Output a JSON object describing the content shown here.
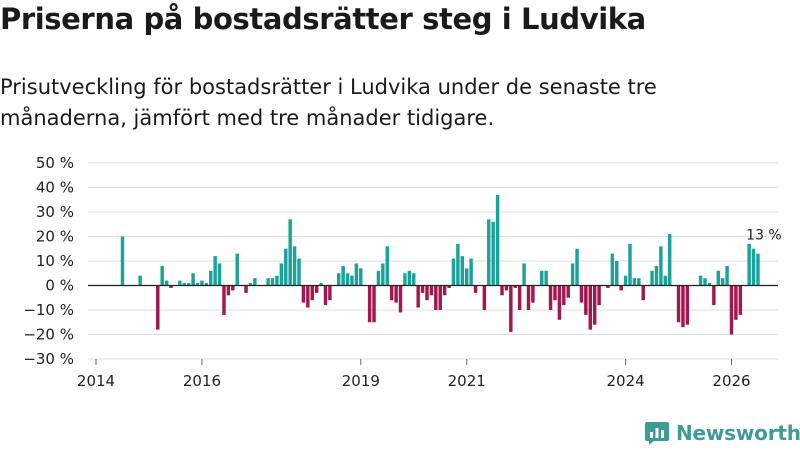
{
  "header": {
    "title": "Priserna på bostadsrätter steg i Ludvika",
    "subtitle": "Prisutveckling för bostadsrätter i Ludvika under de senaste tre månaderna, jämfört med tre månader tidigare."
  },
  "brand": {
    "name": "Newsworthy",
    "icon": "newsworthy-logo-icon",
    "color": "#3f9b96"
  },
  "colors": {
    "positive": "#1aa39a",
    "negative": "#a3174f",
    "grid": "#dcdcdc",
    "zero_line": "#222222"
  },
  "chart_data": {
    "type": "bar",
    "title": "Priserna på bostadsrätter steg i Ludvika",
    "xlabel": "",
    "ylabel": "",
    "x_start": 2014.0,
    "x_step": 0.08333,
    "xlim": [
      2014,
      2026.5
    ],
    "ylim": [
      -30,
      50
    ],
    "y_ticks": [
      -30,
      -20,
      -10,
      0,
      10,
      20,
      30,
      40,
      50
    ],
    "y_tick_labels": [
      "−30 %",
      "−20 %",
      "−10 %",
      "0 %",
      "10 %",
      "20 %",
      "30 %",
      "40 %",
      "50 %"
    ],
    "x_ticks": [
      2014,
      2016,
      2019,
      2021,
      2024,
      2026
    ],
    "x_tick_labels": [
      "2014",
      "2016",
      "2019",
      "2021",
      "2024",
      "2026"
    ],
    "grid": true,
    "values": [
      null,
      null,
      null,
      null,
      null,
      null,
      20,
      0,
      0,
      0,
      4,
      0,
      0,
      0,
      -18,
      8,
      2,
      -1,
      0,
      2,
      1,
      1,
      5,
      1,
      2,
      1,
      6,
      12,
      9,
      -12,
      -4,
      -2,
      13,
      0,
      -3,
      1,
      3,
      0,
      0,
      3,
      3,
      4,
      9,
      15,
      27,
      16,
      11,
      -7,
      -9,
      -6,
      -3,
      1,
      -8,
      -6,
      0,
      5,
      8,
      5,
      4,
      9,
      7,
      0,
      -15,
      -15,
      6,
      9,
      16,
      -6,
      -7,
      -11,
      5,
      6,
      5,
      -9,
      -3,
      -6,
      -4,
      -10,
      -10,
      -4,
      -1,
      11,
      17,
      12,
      7,
      11,
      -3,
      0,
      -10,
      27,
      26,
      37,
      -4,
      -2,
      -19,
      -1,
      -10,
      9,
      -10,
      -7,
      0,
      6,
      6,
      -10,
      -6,
      -14,
      -8,
      -5,
      9,
      15,
      -7,
      -12,
      -18,
      -16,
      -8,
      0,
      -1,
      13,
      10,
      -2,
      4,
      17,
      3,
      3,
      -6,
      0,
      6,
      8,
      16,
      4,
      21,
      0,
      -15,
      -17,
      -16,
      0,
      0,
      4,
      3,
      1,
      -8,
      6,
      3,
      8,
      -20,
      -14,
      -12,
      0,
      17,
      15,
      13
    ],
    "annotations": [
      {
        "text": "13 %",
        "anchor": "last-bar"
      }
    ]
  }
}
